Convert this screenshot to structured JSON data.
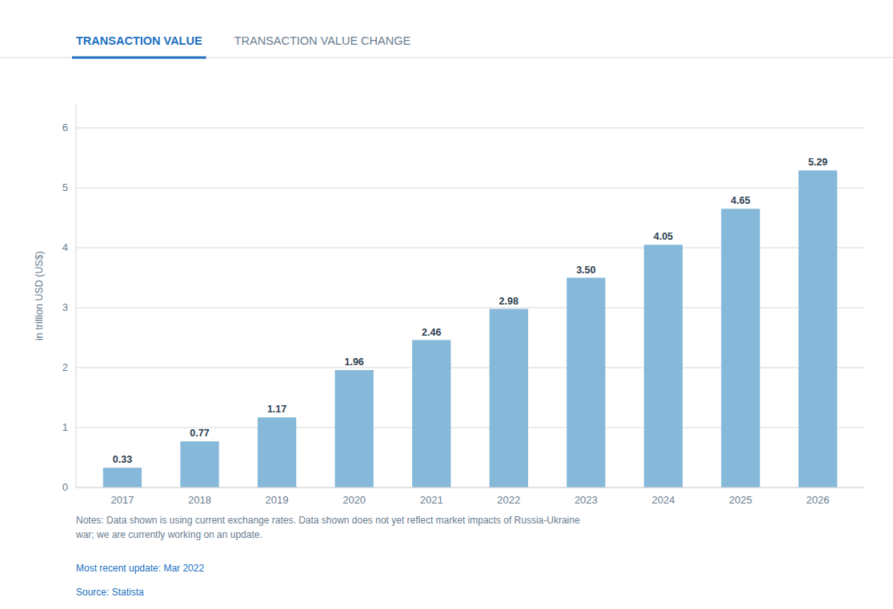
{
  "chart_data": {
    "type": "bar",
    "categories": [
      "2017",
      "2018",
      "2019",
      "2020",
      "2021",
      "2022",
      "2023",
      "2024",
      "2025",
      "2026"
    ],
    "values": [
      0.33,
      0.77,
      1.17,
      1.96,
      2.46,
      2.98,
      3.5,
      4.05,
      4.65,
      5.29
    ],
    "value_labels": [
      "0.33",
      "0.77",
      "1.17",
      "1.96",
      "2.46",
      "2.98",
      "3.50",
      "4.05",
      "4.65",
      "5.29"
    ],
    "data_labels": true,
    "color": "#85b8d9",
    "ylim": [
      0,
      6.4
    ],
    "yticks": [
      0,
      1,
      2,
      3,
      4,
      5,
      6
    ],
    "ylabel": "in trillion USD (US$)",
    "grid": true,
    "annotations": [
      "TRANSACTION VALUE",
      "TRANSACTION VALUE CHANGE",
      "Notes: Data shown is using current exchange rates. Data shown does not yet reflect market impacts of Russia-Ukraine\nwar; we are currently working on an update.",
      "Most recent update: Mar 2022",
      "Source: Statista"
    ]
  }
}
